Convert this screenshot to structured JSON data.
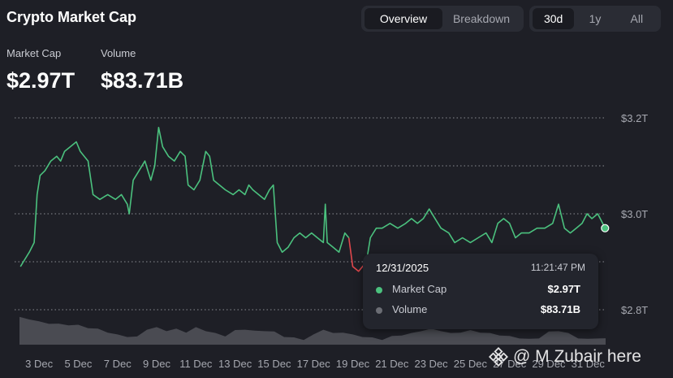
{
  "header": {
    "title": "Crypto Market Cap"
  },
  "view_tabs": [
    {
      "label": "Overview",
      "active": true
    },
    {
      "label": "Breakdown",
      "active": false
    }
  ],
  "range_tabs": [
    {
      "label": "30d",
      "active": true
    },
    {
      "label": "1y",
      "active": false
    },
    {
      "label": "All",
      "active": false
    }
  ],
  "stats": {
    "market_cap": {
      "label": "Market Cap",
      "value": "$2.97T"
    },
    "volume": {
      "label": "Volume",
      "value": "$83.71B"
    }
  },
  "tooltip": {
    "date": "12/31/2025",
    "time": "11:21:47 PM",
    "rows": [
      {
        "name": "Market Cap",
        "value": "$2.97T",
        "color": "#4bc17e"
      },
      {
        "name": "Volume",
        "value": "$83.71B",
        "color": "#6b6d74"
      }
    ]
  },
  "watermark": {
    "text": "@ M Zubair here"
  },
  "colors": {
    "up": "#4bc17e",
    "down": "#e0474c",
    "volume_area": "#4a4b52",
    "grid": "#8a8c93",
    "axis_text": "#a6a8b0"
  },
  "chart_data": {
    "type": "line",
    "title": "",
    "xlabel": "",
    "ylabel": "",
    "y_ticks": [
      {
        "value": 3.2,
        "label": "$3.2T"
      },
      {
        "value": 3.0,
        "label": "$3.0T"
      },
      {
        "value": 2.8,
        "label": "$2.8T"
      }
    ],
    "ylim": [
      2.8,
      3.2
    ],
    "x_ticks": [
      "3 Dec",
      "5 Dec",
      "7 Dec",
      "9 Dec",
      "11 Dec",
      "13 Dec",
      "15 Dec",
      "17 Dec",
      "19 Dec",
      "21 Dec",
      "23 Dec",
      "25 Dec",
      "27 Dec",
      "29 Dec",
      "31 Dec"
    ],
    "x_tick_days": [
      3,
      5,
      7,
      9,
      11,
      13,
      15,
      17,
      19,
      21,
      23,
      25,
      27,
      29,
      31
    ],
    "xlim_days": [
      2,
      31.9
    ],
    "grid": "horizontal dotted",
    "series": [
      {
        "name": "Market Cap",
        "unit": "trillion USD",
        "points": [
          [
            2.05,
            2.89
          ],
          [
            2.2,
            2.9
          ],
          [
            2.5,
            2.92
          ],
          [
            2.75,
            2.94
          ],
          [
            2.9,
            3.04
          ],
          [
            3.05,
            3.08
          ],
          [
            3.3,
            3.09
          ],
          [
            3.6,
            3.11
          ],
          [
            3.9,
            3.12
          ],
          [
            4.1,
            3.11
          ],
          [
            4.3,
            3.13
          ],
          [
            4.6,
            3.14
          ],
          [
            4.9,
            3.15
          ],
          [
            5.1,
            3.13
          ],
          [
            5.3,
            3.12
          ],
          [
            5.5,
            3.11
          ],
          [
            5.75,
            3.04
          ],
          [
            6.1,
            3.03
          ],
          [
            6.5,
            3.04
          ],
          [
            6.9,
            3.03
          ],
          [
            7.2,
            3.04
          ],
          [
            7.5,
            3.02
          ],
          [
            7.6,
            3.0
          ],
          [
            7.8,
            3.07
          ],
          [
            8.1,
            3.09
          ],
          [
            8.4,
            3.11
          ],
          [
            8.7,
            3.07
          ],
          [
            8.9,
            3.1
          ],
          [
            9.1,
            3.18
          ],
          [
            9.3,
            3.14
          ],
          [
            9.6,
            3.12
          ],
          [
            9.9,
            3.11
          ],
          [
            10.2,
            3.13
          ],
          [
            10.45,
            3.12
          ],
          [
            10.6,
            3.06
          ],
          [
            10.9,
            3.05
          ],
          [
            11.2,
            3.07
          ],
          [
            11.5,
            3.13
          ],
          [
            11.7,
            3.12
          ],
          [
            11.9,
            3.07
          ],
          [
            12.2,
            3.06
          ],
          [
            12.5,
            3.05
          ],
          [
            12.9,
            3.04
          ],
          [
            13.2,
            3.05
          ],
          [
            13.5,
            3.04
          ],
          [
            13.7,
            3.06
          ],
          [
            13.9,
            3.05
          ],
          [
            14.2,
            3.04
          ],
          [
            14.5,
            3.03
          ],
          [
            14.75,
            3.05
          ],
          [
            14.95,
            3.06
          ],
          [
            15.15,
            2.94
          ],
          [
            15.4,
            2.92
          ],
          [
            15.7,
            2.93
          ],
          [
            16.0,
            2.95
          ],
          [
            16.3,
            2.96
          ],
          [
            16.6,
            2.95
          ],
          [
            16.9,
            2.96
          ],
          [
            17.2,
            2.95
          ],
          [
            17.5,
            2.94
          ],
          [
            17.6,
            3.02
          ],
          [
            17.7,
            2.94
          ],
          [
            18.0,
            2.93
          ],
          [
            18.3,
            2.92
          ],
          [
            18.6,
            2.96
          ],
          [
            18.8,
            2.95
          ],
          [
            19.0,
            2.89
          ],
          [
            19.3,
            2.88
          ],
          [
            19.5,
            2.89
          ],
          [
            19.7,
            2.9
          ],
          [
            19.9,
            2.95
          ],
          [
            20.2,
            2.97
          ],
          [
            20.5,
            2.97
          ],
          [
            20.9,
            2.98
          ],
          [
            21.3,
            2.97
          ],
          [
            21.7,
            2.98
          ],
          [
            22.0,
            2.99
          ],
          [
            22.3,
            2.98
          ],
          [
            22.6,
            2.99
          ],
          [
            22.9,
            3.01
          ],
          [
            23.2,
            2.99
          ],
          [
            23.5,
            2.97
          ],
          [
            23.9,
            2.96
          ],
          [
            24.2,
            2.94
          ],
          [
            24.6,
            2.95
          ],
          [
            25.0,
            2.94
          ],
          [
            25.4,
            2.95
          ],
          [
            25.8,
            2.96
          ],
          [
            26.1,
            2.94
          ],
          [
            26.4,
            2.98
          ],
          [
            26.7,
            2.99
          ],
          [
            27.0,
            2.98
          ],
          [
            27.3,
            2.95
          ],
          [
            27.6,
            2.96
          ],
          [
            28.0,
            2.96
          ],
          [
            28.4,
            2.97
          ],
          [
            28.8,
            2.97
          ],
          [
            29.2,
            2.98
          ],
          [
            29.5,
            3.02
          ],
          [
            29.8,
            2.97
          ],
          [
            30.1,
            2.96
          ],
          [
            30.4,
            2.97
          ],
          [
            30.7,
            2.98
          ],
          [
            30.95,
            3.0
          ],
          [
            31.2,
            2.99
          ],
          [
            31.5,
            3.0
          ],
          [
            31.75,
            2.98
          ],
          [
            31.87,
            2.97
          ]
        ],
        "down_segment_days": [
          19.0,
          19.7
        ],
        "last_point_marker": true
      },
      {
        "name": "Volume",
        "unit": "relative",
        "type": "area",
        "x_days": [
          2.0,
          2.5,
          3.0,
          3.5,
          4.0,
          4.5,
          5.0,
          5.5,
          6.0,
          6.5,
          7.0,
          7.5,
          8.0,
          8.5,
          9.0,
          9.5,
          10.0,
          10.5,
          11.0,
          11.5,
          12.0,
          12.5,
          13.0,
          13.5,
          14.0,
          14.5,
          15.0,
          15.5,
          16.0,
          16.5,
          17.0,
          17.5,
          18.0,
          18.5,
          19.0,
          19.5,
          20.0,
          20.5,
          21.0,
          21.5,
          22.0,
          22.5,
          23.0,
          23.5,
          24.0,
          24.5,
          25.0,
          25.5,
          26.0,
          26.5,
          27.0,
          27.5,
          28.0,
          28.5,
          29.0,
          29.5,
          30.0,
          30.5,
          31.0,
          31.5,
          31.9
        ],
        "values": [
          0.95,
          0.9,
          0.8,
          0.75,
          0.72,
          0.7,
          0.68,
          0.6,
          0.55,
          0.45,
          0.35,
          0.3,
          0.28,
          0.55,
          0.6,
          0.5,
          0.55,
          0.45,
          0.6,
          0.5,
          0.4,
          0.32,
          0.5,
          0.55,
          0.48,
          0.5,
          0.45,
          0.3,
          0.25,
          0.2,
          0.35,
          0.55,
          0.4,
          0.45,
          0.35,
          0.3,
          0.25,
          0.2,
          0.3,
          0.35,
          0.4,
          0.5,
          0.55,
          0.5,
          0.4,
          0.45,
          0.5,
          0.45,
          0.4,
          0.35,
          0.3,
          0.25,
          0.2,
          0.25,
          0.45,
          0.5,
          0.4,
          0.25,
          0.2,
          0.25,
          0.22
        ]
      }
    ]
  }
}
